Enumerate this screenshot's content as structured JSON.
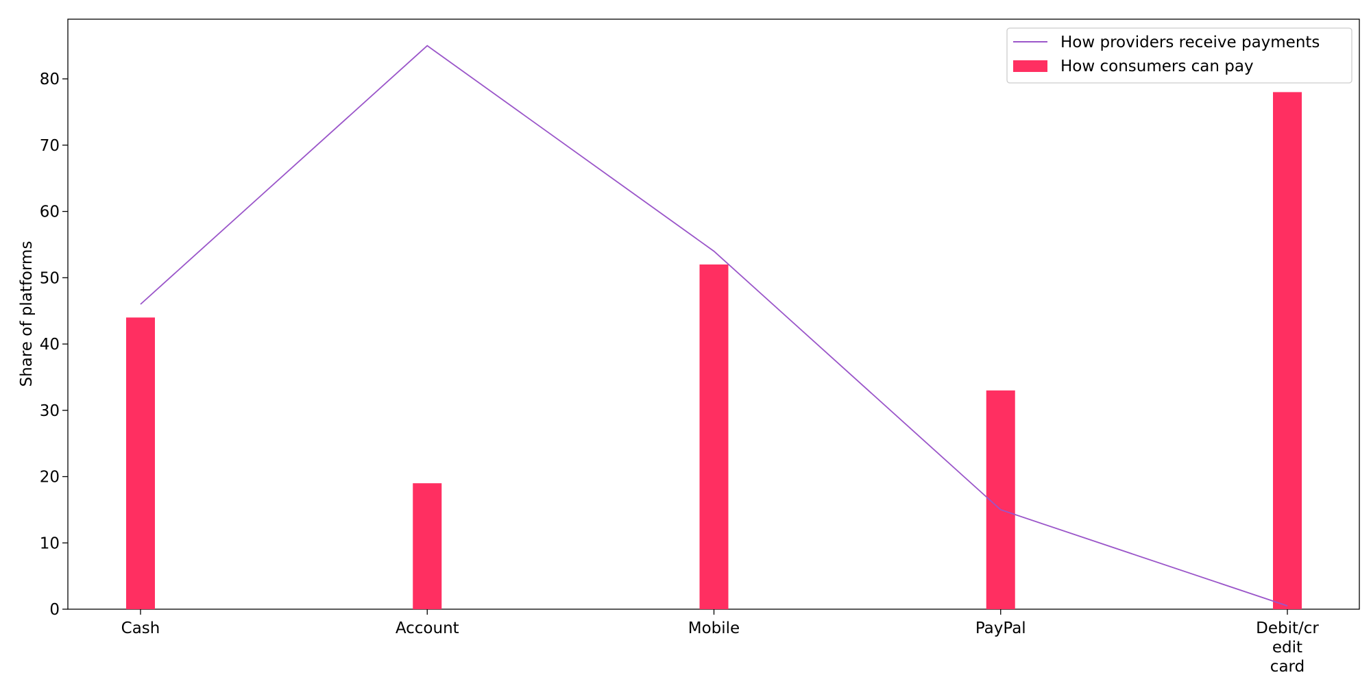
{
  "chart_data": {
    "type": "bar",
    "title": "",
    "xlabel": "",
    "ylabel": "Share of platforms",
    "categories": [
      [
        "Cash"
      ],
      [
        "Account"
      ],
      [
        "Mobile"
      ],
      [
        "PayPal"
      ],
      [
        "Debit/cr",
        "edit",
        "card"
      ]
    ],
    "series": [
      {
        "name": "How consumers can pay",
        "kind": "bar",
        "color": "#ff2f61",
        "values": [
          44,
          19,
          52,
          33,
          78
        ]
      },
      {
        "name": "How providers receive payments",
        "kind": "line",
        "color": "#9a55c9",
        "values": [
          46,
          85,
          54,
          15,
          0.5
        ]
      }
    ],
    "ylim": [
      0,
      89
    ],
    "yticks": [
      0,
      10,
      20,
      30,
      40,
      50,
      60,
      70,
      80
    ],
    "grid": false,
    "legend": {
      "position": "top-right",
      "entries": [
        "How providers receive payments",
        "How consumers can pay"
      ]
    }
  }
}
